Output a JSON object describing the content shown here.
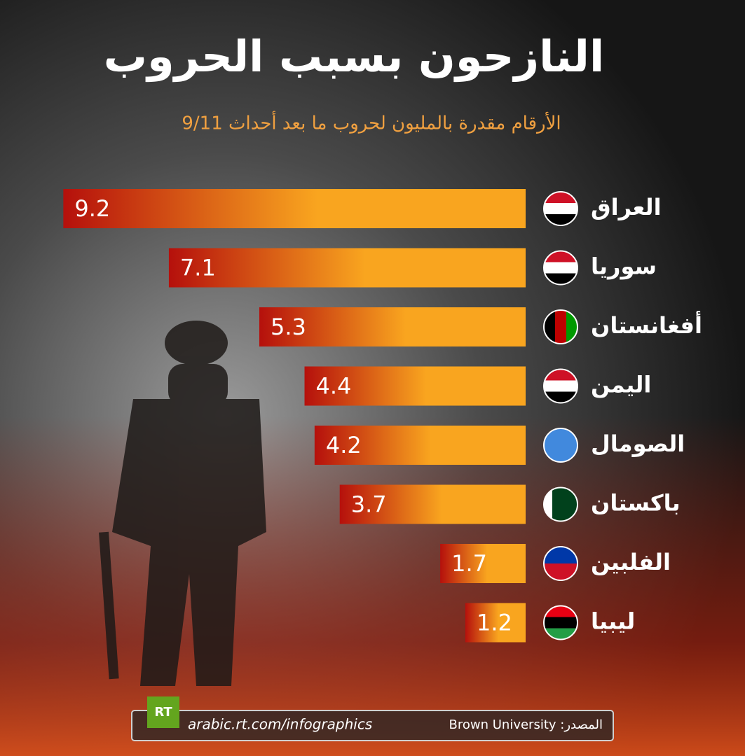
{
  "chart_data": {
    "type": "bar",
    "orientation": "horizontal",
    "title": "النازحون بسبب الحروب",
    "subtitle": "الأرقام مقدرة بالمليون لحروب ما بعد أحداث 9/11",
    "categories": [
      "العراق",
      "سوريا",
      "أفغانستان",
      "اليمن",
      "الصومال",
      "باكستان",
      "الفلبين",
      "ليبيا"
    ],
    "values": [
      9.2,
      7.1,
      5.3,
      4.4,
      4.2,
      3.7,
      1.7,
      1.2
    ],
    "colors": [
      "#b5100c",
      "#f9a51f"
    ]
  },
  "footer": {
    "logo": "RT",
    "url": "arabic.rt.com/infographics",
    "source": "المصدر: Brown University"
  }
}
